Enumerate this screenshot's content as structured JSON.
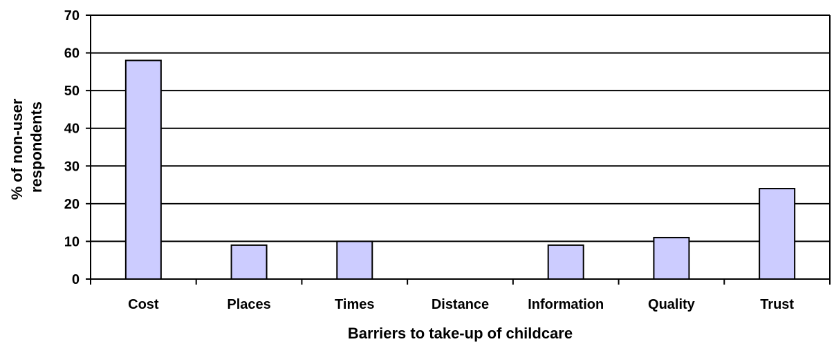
{
  "chart_data": {
    "type": "bar",
    "title": "",
    "xlabel": "Barriers to take-up of childcare",
    "ylabel_lines": [
      "% of non-user",
      "respondents"
    ],
    "categories": [
      "Cost",
      "Places",
      "Times",
      "Distance",
      "Information",
      "Quality",
      "Trust"
    ],
    "values": [
      58,
      9,
      10,
      0,
      9,
      11,
      24
    ],
    "ylim": [
      0,
      70
    ],
    "yticks": [
      0,
      10,
      20,
      30,
      40,
      50,
      60,
      70
    ],
    "grid": true,
    "legend": "none",
    "colors": {
      "bar_fill": "#ccccff",
      "bar_stroke": "#000000",
      "grid": "#000000",
      "axis": "#000000"
    }
  }
}
